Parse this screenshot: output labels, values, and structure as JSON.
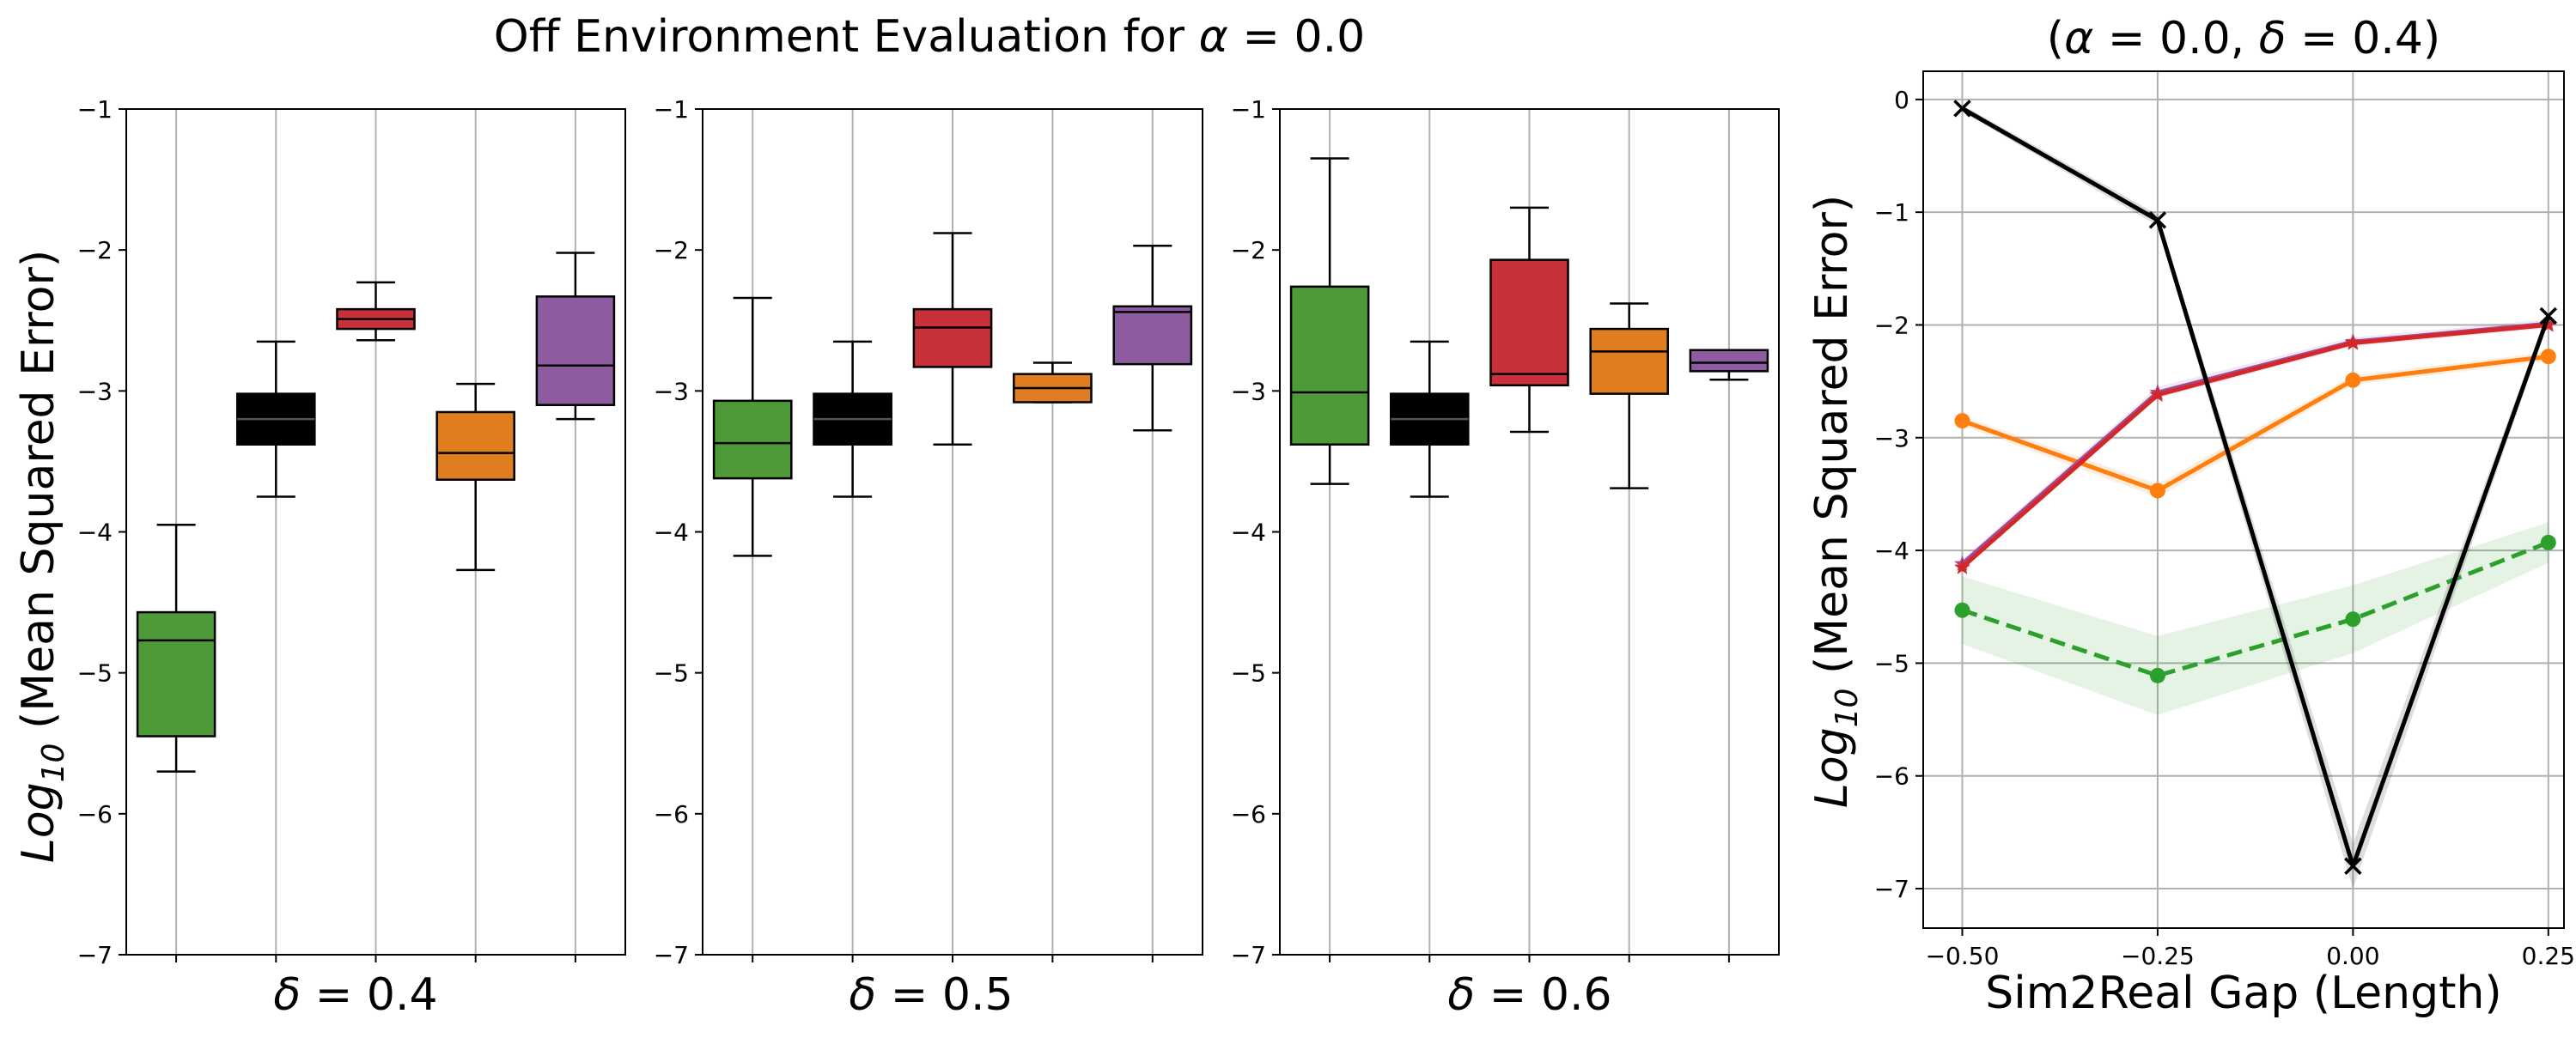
{
  "figure": {
    "suptitle_prefix": "Off Environment Evaluation for ",
    "suptitle_symbol": "α",
    "suptitle_value": " = 0.0"
  },
  "boxplot_ylabel": {
    "prefix": "Log",
    "sub": "10",
    "rest": " (Mean Squared Error)"
  },
  "line_panel": {
    "title_open": "(",
    "title_alpha": "α",
    "title_mid": " = 0.0, ",
    "title_delta": "δ",
    "title_close": " = 0.4)",
    "xlabel": "Sim2Real Gap (Length)",
    "ylabel": {
      "prefix": "Log",
      "sub": "10",
      "rest": " (Mean Squared Error)"
    }
  },
  "colors": {
    "green": "#4e9a38",
    "black": "#000000",
    "red": "#c9313a",
    "orange": "#e07d1e",
    "purple": "#8e5aa0",
    "line_green": "#2ca02c",
    "line_orange": "#ff7f0e",
    "line_purple": "#9c4d9c",
    "line_red": "#d62728"
  },
  "chart_data": [
    {
      "type": "box",
      "xlabel_symbol": "δ",
      "xlabel_value": " = 0.4",
      "ylim": [
        -7,
        -1
      ],
      "yticks": [
        -7,
        -6,
        -5,
        -4,
        -3,
        -2,
        -1
      ],
      "grid": "vertical",
      "boxes": [
        {
          "color": "green",
          "whislo": -5.7,
          "q1": -5.45,
          "med": -4.77,
          "q3": -4.57,
          "whishi": -3.95
        },
        {
          "color": "black",
          "whislo": -3.75,
          "q1": -3.38,
          "med": -3.2,
          "q3": -3.02,
          "whishi": -2.65
        },
        {
          "color": "red",
          "whislo": -2.64,
          "q1": -2.56,
          "med": -2.49,
          "q3": -2.42,
          "whishi": -2.23
        },
        {
          "color": "orange",
          "whislo": -4.27,
          "q1": -3.63,
          "med": -3.44,
          "q3": -3.15,
          "whishi": -2.95
        },
        {
          "color": "purple",
          "whislo": -3.2,
          "q1": -3.1,
          "med": -2.82,
          "q3": -2.33,
          "whishi": -2.02
        }
      ]
    },
    {
      "type": "box",
      "xlabel_symbol": "δ",
      "xlabel_value": " = 0.5",
      "ylim": [
        -7,
        -1
      ],
      "yticks": [
        -7,
        -6,
        -5,
        -4,
        -3,
        -2,
        -1
      ],
      "grid": "vertical",
      "boxes": [
        {
          "color": "green",
          "whislo": -4.17,
          "q1": -3.62,
          "med": -3.37,
          "q3": -3.07,
          "whishi": -2.34
        },
        {
          "color": "black",
          "whislo": -3.75,
          "q1": -3.38,
          "med": -3.2,
          "q3": -3.02,
          "whishi": -2.65
        },
        {
          "color": "red",
          "whislo": -3.38,
          "q1": -2.83,
          "med": -2.55,
          "q3": -2.42,
          "whishi": -1.88
        },
        {
          "color": "orange",
          "whislo": -3.08,
          "q1": -3.08,
          "med": -2.98,
          "q3": -2.88,
          "whishi": -2.8
        },
        {
          "color": "purple",
          "whislo": -3.28,
          "q1": -2.81,
          "med": -2.44,
          "q3": -2.4,
          "whishi": -1.97
        }
      ]
    },
    {
      "type": "box",
      "xlabel_symbol": "δ",
      "xlabel_value": " = 0.6",
      "ylim": [
        -7,
        -1
      ],
      "yticks": [
        -7,
        -6,
        -5,
        -4,
        -3,
        -2,
        -1
      ],
      "grid": "vertical",
      "boxes": [
        {
          "color": "green",
          "whislo": -3.66,
          "q1": -3.38,
          "med": -3.01,
          "q3": -2.26,
          "whishi": -1.35
        },
        {
          "color": "black",
          "whislo": -3.75,
          "q1": -3.38,
          "med": -3.2,
          "q3": -3.02,
          "whishi": -2.65
        },
        {
          "color": "red",
          "whislo": -3.29,
          "q1": -2.96,
          "med": -2.88,
          "q3": -2.07,
          "whishi": -1.7
        },
        {
          "color": "orange",
          "whislo": -3.69,
          "q1": -3.02,
          "med": -2.72,
          "q3": -2.56,
          "whishi": -2.38
        },
        {
          "color": "purple",
          "whislo": -2.92,
          "q1": -2.86,
          "med": -2.8,
          "q3": -2.71,
          "whishi": -2.71
        }
      ]
    },
    {
      "type": "line",
      "xlim": [
        -0.55,
        0.27
      ],
      "ylim": [
        -7.35,
        0.25
      ],
      "xticks": [
        -0.5,
        -0.25,
        0.0,
        0.25
      ],
      "xtick_labels": [
        "−0.50",
        "−0.25",
        "0.00",
        "0.25"
      ],
      "yticks": [
        -7,
        -6,
        -5,
        -4,
        -3,
        -2,
        -1,
        0
      ],
      "ytick_labels": [
        "−7",
        "−6",
        "−5",
        "−4",
        "−3",
        "−2",
        "−1",
        "0"
      ],
      "grid": true,
      "x": [
        -0.5,
        -0.25,
        0.0,
        0.25
      ],
      "series": [
        {
          "color": "line_green",
          "style": "dashed",
          "marker": "o",
          "values": [
            -4.53,
            -5.11,
            -4.61,
            -3.93
          ],
          "band": [
            0.3,
            0.35,
            0.3,
            0.18
          ]
        },
        {
          "color": "line_orange",
          "style": "solid",
          "marker": "o",
          "values": [
            -2.85,
            -3.47,
            -2.49,
            -2.28
          ],
          "band": [
            0.04,
            0.06,
            0.04,
            0.04
          ]
        },
        {
          "color": "line_purple",
          "style": "solid",
          "marker": "*",
          "values": [
            -4.12,
            -2.6,
            -2.15,
            -1.99
          ],
          "band": [
            0.04,
            0.05,
            0.04,
            0.04
          ]
        },
        {
          "color": "line_red",
          "style": "solid",
          "marker": "*",
          "values": [
            -4.15,
            -2.62,
            -2.16,
            -2.0
          ],
          "band": [
            0,
            0,
            0,
            0
          ]
        },
        {
          "color": "black",
          "style": "solid",
          "marker": "x",
          "values": [
            -0.08,
            -1.07,
            -6.8,
            -1.92
          ],
          "band": [
            0.03,
            0.05,
            0.2,
            0.05
          ]
        }
      ]
    }
  ]
}
